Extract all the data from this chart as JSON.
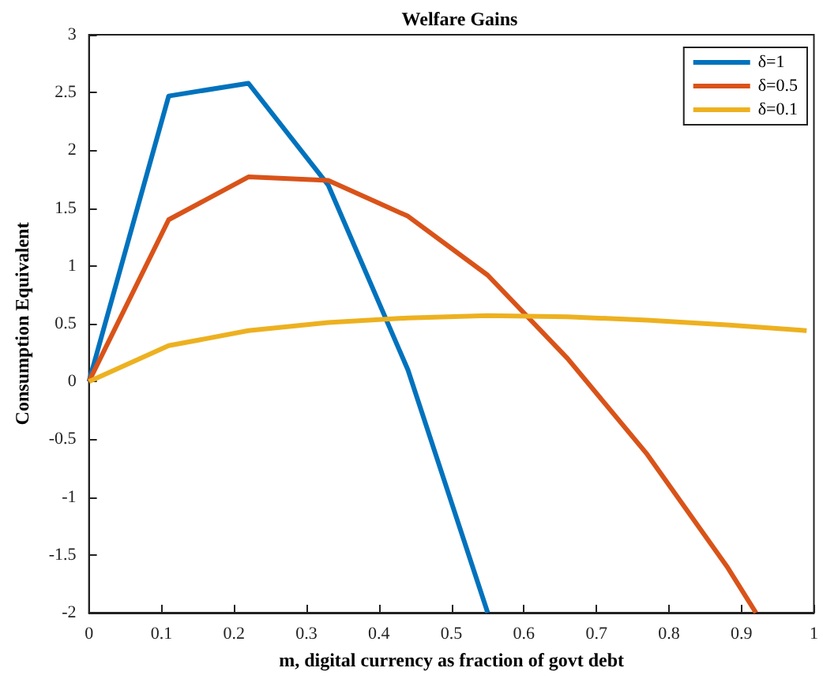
{
  "chart_data": {
    "type": "line",
    "title": "Welfare Gains",
    "xlabel": "m, digital currency as fraction of govt debt",
    "ylabel": "Consumption Equivalent",
    "xlim": [
      0,
      1
    ],
    "xticks": [
      0,
      0.1,
      0.2,
      0.3,
      0.4,
      0.5,
      0.6,
      0.7,
      0.8,
      0.9,
      1
    ],
    "ylim": [
      -2,
      3
    ],
    "yticks": [
      -2,
      -1.5,
      -1,
      -0.5,
      0,
      0.5,
      1,
      1.5,
      2,
      2.5,
      3
    ],
    "grid": false,
    "legend": "top right",
    "marker": "none",
    "line_style": "solid",
    "series": [
      {
        "name": "δ=1",
        "color": "#0072bd",
        "x": [
          0,
          0.11,
          0.22,
          0.33,
          0.44,
          0.55
        ],
        "values": [
          0,
          2.47,
          2.58,
          1.7,
          0.1,
          -2
        ]
      },
      {
        "name": "δ=0.5",
        "color": "#d95319",
        "x": [
          0,
          0.11,
          0.22,
          0.33,
          0.44,
          0.55,
          0.66,
          0.77,
          0.88,
          0.92
        ],
        "values": [
          0,
          1.4,
          1.77,
          1.74,
          1.43,
          0.92,
          0.2,
          -0.63,
          -1.6,
          -2
        ]
      },
      {
        "name": "δ=0.1",
        "color": "#edb120",
        "x": [
          0,
          0.11,
          0.22,
          0.33,
          0.44,
          0.55,
          0.66,
          0.77,
          0.88,
          0.99
        ],
        "values": [
          0,
          0.31,
          0.44,
          0.51,
          0.55,
          0.57,
          0.56,
          0.53,
          0.49,
          0.44
        ]
      }
    ]
  }
}
